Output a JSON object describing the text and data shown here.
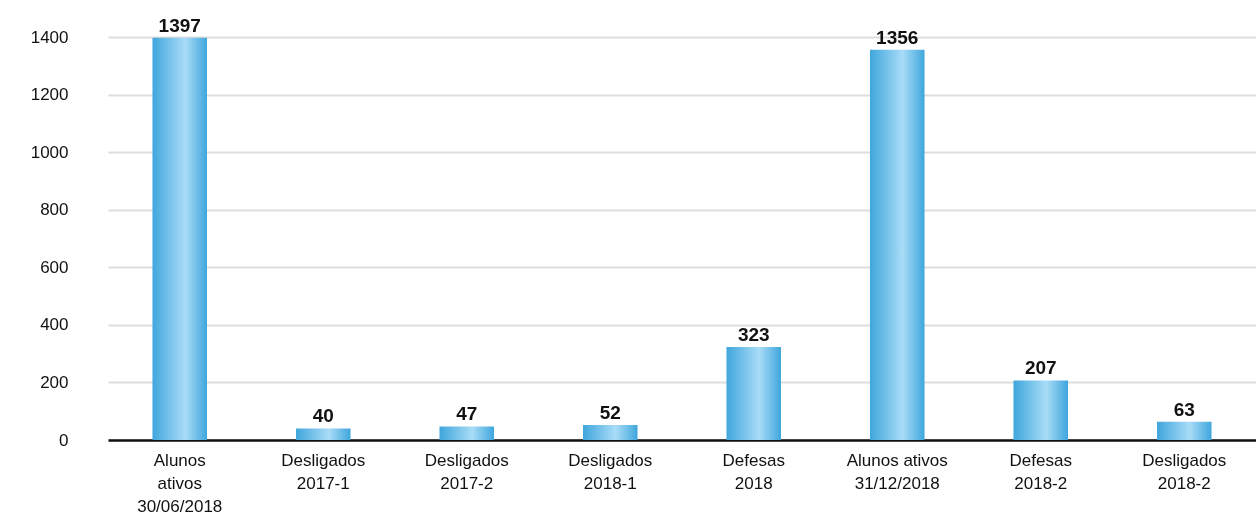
{
  "chart_data": {
    "type": "bar",
    "categories": [
      "Alunos\nativos\n30/06/2018",
      "Desligados\n2017-1",
      "Desligados\n2017-2",
      "Desligados\n2018-1",
      "Defesas\n2018",
      "Alunos ativos\n31/12/2018",
      "Defesas\n2018-2",
      "Desligados\n2018-2"
    ],
    "values": [
      1397,
      40,
      47,
      52,
      323,
      1356,
      207,
      63
    ],
    "color": "#3fa6dc",
    "ylim": [
      0,
      1400
    ],
    "yticks": [
      0,
      200,
      400,
      600,
      800,
      1000,
      1200,
      1400
    ],
    "grid": "y",
    "data_labels": true
  }
}
